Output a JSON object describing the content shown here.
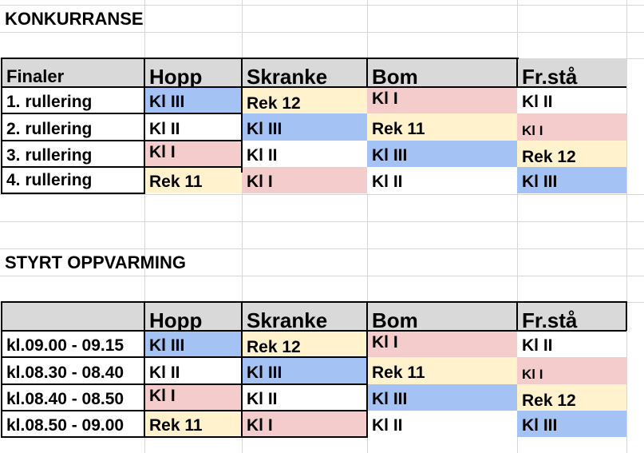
{
  "sections": [
    {
      "title": "KONKURRANSE",
      "header": [
        "Finaler",
        "Hopp",
        "Skranke",
        "Bom",
        "Fr.stå"
      ],
      "rows": [
        {
          "label": "1. rullering",
          "cells": [
            "Kl III",
            "Rek 12",
            "Kl I",
            "Kl II"
          ],
          "colors": [
            "blue",
            "yellow",
            "pink",
            "white"
          ]
        },
        {
          "label": "2. rullering",
          "cells": [
            "Kl II",
            "Kl III",
            "Rek 11",
            "Kl I"
          ],
          "colors": [
            "white",
            "blue",
            "yellow",
            "pink"
          ]
        },
        {
          "label": "3. rullering",
          "cells": [
            "Kl I",
            "Kl II",
            "Kl III",
            "Rek 12"
          ],
          "colors": [
            "pink",
            "white",
            "blue",
            "yellow"
          ]
        },
        {
          "label": "4. rullering",
          "cells": [
            "Rek 11",
            "Kl I",
            "Kl II",
            "Kl III"
          ],
          "colors": [
            "yellow",
            "pink",
            "white",
            "blue"
          ]
        }
      ]
    },
    {
      "title": "STYRT OPPVARMING",
      "header": [
        "",
        "Hopp",
        "Skranke",
        "Bom",
        "Fr.stå"
      ],
      "rows": [
        {
          "label": "kl.09.00 - 09.15",
          "cells": [
            "Kl III",
            "Rek 12",
            "Kl I",
            "Kl II"
          ],
          "colors": [
            "blue",
            "yellow",
            "pink",
            "white"
          ]
        },
        {
          "label": "kl.08.30 - 08.40",
          "cells": [
            "Kl II",
            "Kl III",
            "Rek 11",
            "Kl I"
          ],
          "colors": [
            "white",
            "blue",
            "yellow",
            "pink"
          ]
        },
        {
          "label": "kl.08.40 - 08.50",
          "cells": [
            "Kl I",
            "Kl II",
            "Kl III",
            "Rek 12"
          ],
          "colors": [
            "pink",
            "white",
            "blue",
            "yellow"
          ]
        },
        {
          "label": "kl.08.50 - 09.00",
          "cells": [
            "Rek 11",
            "Kl I",
            "Kl II",
            "Kl III"
          ],
          "colors": [
            "yellow",
            "pink",
            "white",
            "blue"
          ]
        }
      ]
    }
  ],
  "colors": {
    "blue": "#a4c2f4",
    "pink": "#f4cccc",
    "yellow": "#fff2cc",
    "header": "#d9d9d9"
  }
}
